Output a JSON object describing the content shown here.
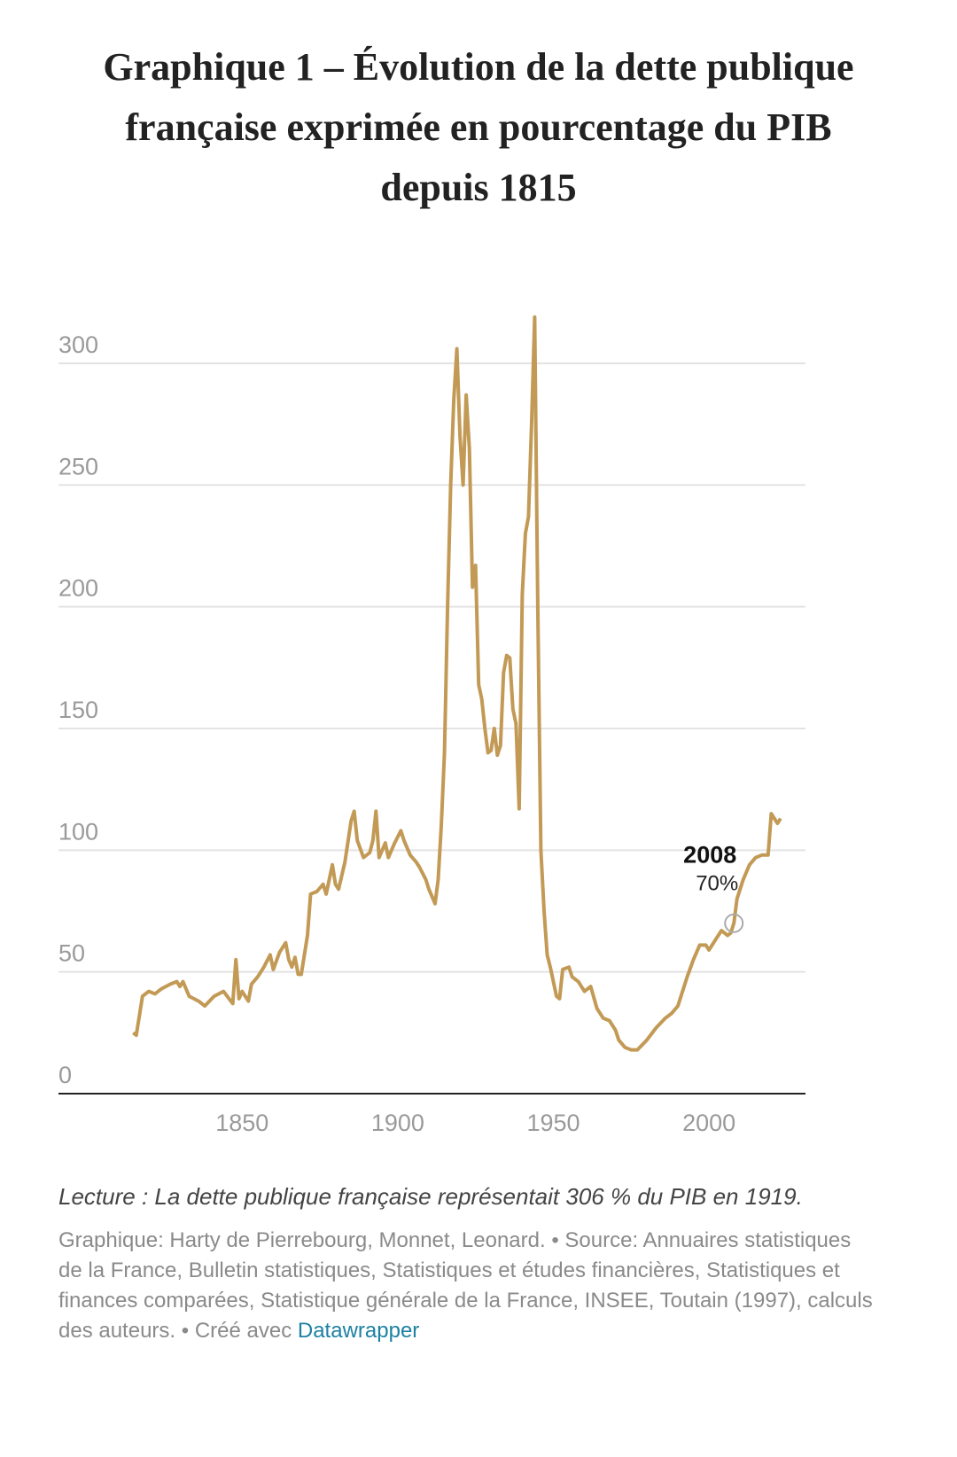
{
  "chart_data": {
    "type": "line",
    "title": "Graphique 1 – Évolution de la dette publique française exprimée en pourcentage du PIB depuis 1815",
    "x": [
      1815,
      1816,
      1818,
      1820,
      1822,
      1824,
      1827,
      1829,
      1830,
      1831,
      1833,
      1836,
      1838,
      1841,
      1844,
      1847,
      1848,
      1849,
      1850,
      1852,
      1853,
      1855,
      1857,
      1859,
      1860,
      1862,
      1864,
      1865,
      1866,
      1867,
      1868,
      1869,
      1871,
      1872,
      1874,
      1876,
      1877,
      1879,
      1880,
      1881,
      1883,
      1885,
      1886,
      1887,
      1889,
      1891,
      1892,
      1893,
      1894,
      1896,
      1897,
      1899,
      1901,
      1902,
      1904,
      1906,
      1907,
      1909,
      1910,
      1912,
      1913,
      1914,
      1915,
      1916,
      1917,
      1918,
      1919,
      1920,
      1921,
      1922,
      1923,
      1924,
      1925,
      1926,
      1927,
      1928,
      1929,
      1930,
      1931,
      1932,
      1933,
      1934,
      1935,
      1936,
      1937,
      1938,
      1939,
      1940,
      1941,
      1942,
      1943,
      1944,
      1945,
      1946,
      1947,
      1948,
      1949,
      1951,
      1952,
      1953,
      1955,
      1956,
      1958,
      1960,
      1962,
      1964,
      1966,
      1968,
      1970,
      1971,
      1973,
      1975,
      1977,
      1980,
      1983,
      1986,
      1988,
      1990,
      1991,
      1993,
      1995,
      1997,
      1999,
      2000,
      2002,
      2004,
      2006,
      2007,
      2008,
      2009,
      2011,
      2013,
      2015,
      2017,
      2019,
      2020,
      2021,
      2022,
      2023
    ],
    "series": [
      {
        "color": "#c29a55",
        "values": [
          25,
          24,
          40,
          42,
          41,
          43,
          45,
          46,
          44,
          46,
          40,
          38,
          36,
          40,
          42,
          37,
          55,
          39,
          42,
          38,
          45,
          48,
          52,
          57,
          51,
          58,
          62,
          55,
          52,
          56,
          49,
          49,
          65,
          82,
          83,
          86,
          82,
          94,
          86,
          84,
          95,
          112,
          116,
          104,
          97,
          99,
          104,
          116,
          97,
          103,
          97,
          103,
          108,
          104,
          98,
          95,
          93,
          88,
          84,
          78,
          88,
          110,
          140,
          200,
          250,
          285,
          306,
          270,
          250,
          287,
          265,
          208,
          217,
          168,
          162,
          150,
          140,
          141,
          150,
          139,
          143,
          173,
          180,
          179,
          158,
          152,
          117,
          205,
          230,
          237,
          275,
          319,
          200,
          100,
          75,
          57,
          52,
          40,
          39,
          51,
          52,
          48,
          46,
          42,
          44,
          35,
          31,
          30,
          26,
          22,
          19,
          18,
          18,
          22,
          27,
          31,
          33,
          36,
          40,
          48,
          55,
          61,
          61,
          59,
          63,
          67,
          65,
          66,
          70,
          80,
          88,
          94,
          97,
          98,
          98,
          115,
          113,
          111,
          113
        ]
      }
    ],
    "xlim": [
      1791,
      2031
    ],
    "xticks": [
      1850,
      1900,
      1950,
      2000
    ],
    "ylim": [
      0,
      320
    ],
    "yticks": [
      0,
      50,
      100,
      150,
      200,
      250,
      300
    ],
    "grid": true,
    "annotations": [
      {
        "x": 2008,
        "y": 70,
        "label": "2008",
        "value_label": "70%"
      }
    ],
    "note": "Lecture : La dette publique française représentait 306 % du PIB en 1919.",
    "source": "Graphique: Harty de Pierrebourg, Monnet, Leonard. • Source: Annuaires statistiques de la France, Bulletin statistiques, Statistiques et études financières, Statistiques et finances comparées, Statistique générale de la France, INSEE, Toutain (1997), calculs des auteurs. • Créé avec",
    "credit": "Datawrapper"
  }
}
